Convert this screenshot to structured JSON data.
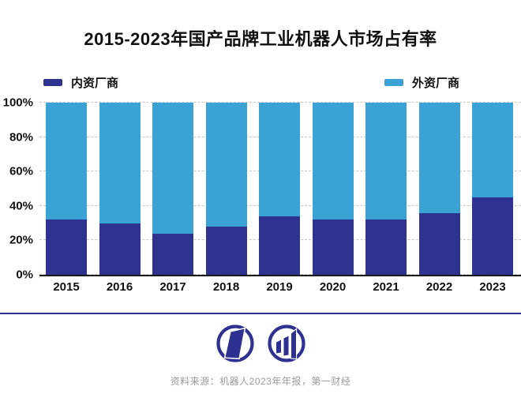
{
  "title": "2015-2023年国产品牌工业机器人市场占有率",
  "legend": {
    "domestic": {
      "label": "内资厂商",
      "color": "#2f3390"
    },
    "foreign": {
      "label": "外资厂商",
      "color": "#3aa2d5"
    }
  },
  "chart_data": {
    "type": "bar",
    "stacked": true,
    "categories": [
      "2015",
      "2016",
      "2017",
      "2018",
      "2019",
      "2020",
      "2021",
      "2022",
      "2023"
    ],
    "series": [
      {
        "name": "内资厂商",
        "color": "#2f3390",
        "values": [
          32,
          30,
          24,
          28,
          34,
          32,
          32,
          36,
          45
        ]
      },
      {
        "name": "外资厂商",
        "color": "#3aa2d5",
        "values": [
          68,
          70,
          76,
          72,
          66,
          68,
          68,
          64,
          55
        ]
      }
    ],
    "title": "2015-2023年国产品牌工业机器人市场占有率",
    "xlabel": "",
    "ylabel": "",
    "ylim": [
      0,
      100
    ],
    "yticks": [
      {
        "label": "100%",
        "value": 100
      },
      {
        "label": "80%",
        "value": 80
      },
      {
        "label": "60%",
        "value": 60
      },
      {
        "label": "40%",
        "value": 40
      },
      {
        "label": "20%",
        "value": 20
      },
      {
        "label": "0%",
        "value": 0
      }
    ],
    "grid": "horizontal-dashed",
    "legend_position": "top"
  },
  "footer": {
    "divider_color": "#2e3192",
    "logos": [
      "yicai-parallelogram-logo-icon",
      "yicai-bars-logo-icon"
    ],
    "logo_color": "#2e3192",
    "source": "资料来源：机器人2023年年报，第一财经"
  },
  "colors": {
    "background": "#ffffff",
    "axis_line": "#1a1a1a",
    "gridline": "#c9c9c9",
    "title_text": "#111111",
    "source_text": "#9b9b9b"
  }
}
